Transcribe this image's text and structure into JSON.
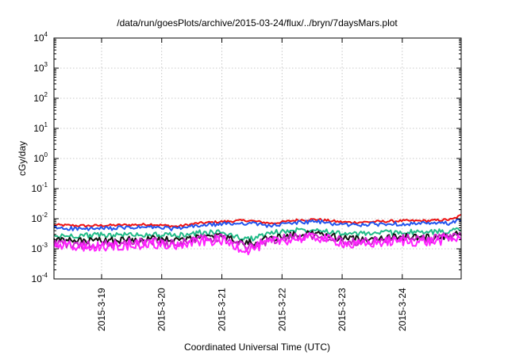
{
  "chart_data": {
    "type": "line",
    "title": "/data/run/goesPlots/archive/2015-03-24/flux/../bryn/7daysMars.plot",
    "xlabel": "Coordinated Universal Time (UTC)",
    "ylabel": "cGy/day",
    "yscale": "log",
    "ylim": [
      "1e-4",
      "1e4"
    ],
    "y_ticks": [
      {
        "base": "10",
        "exp": "4"
      },
      {
        "base": "10",
        "exp": "3"
      },
      {
        "base": "10",
        "exp": "2"
      },
      {
        "base": "10",
        "exp": "1"
      },
      {
        "base": "10",
        "exp": "0"
      },
      {
        "base": "10",
        "exp": "-1"
      },
      {
        "base": "10",
        "exp": "-2"
      },
      {
        "base": "10",
        "exp": "-3"
      },
      {
        "base": "10",
        "exp": "-4"
      }
    ],
    "xlim": [
      "2015-03-18 05:00",
      "2015-03-24 23:30"
    ],
    "x_ticks": [
      "2015-3-19",
      "2015-3-20",
      "2015-3-21",
      "2015-3-22",
      "2015-3-23",
      "2015-3-24"
    ],
    "grid": true,
    "series": [
      {
        "color": "#ee1111",
        "x": [
          "2015-03-18 05:00",
          "2015-03-18 18:00",
          "2015-03-19 10:00",
          "2015-03-19 20:00",
          "2015-03-20 06:00",
          "2015-03-20 14:00",
          "2015-03-21 00:00",
          "2015-03-21 10:00",
          "2015-03-21 20:00",
          "2015-03-22 06:00",
          "2015-03-22 14:00",
          "2015-03-22 22:00",
          "2015-03-23 04:00",
          "2015-03-23 14:00",
          "2015-03-24 00:00",
          "2015-03-24 10:00",
          "2015-03-24 20:00",
          "2015-03-24 23:30"
        ],
        "values": [
          0.0062,
          0.0058,
          0.0062,
          0.0065,
          0.0055,
          0.007,
          0.008,
          0.0088,
          0.007,
          0.009,
          0.0095,
          0.008,
          0.0075,
          0.008,
          0.0085,
          0.0085,
          0.0095,
          0.013
        ]
      },
      {
        "color": "#2255ee",
        "x": [
          "2015-03-18 05:00",
          "2015-03-18 18:00",
          "2015-03-19 10:00",
          "2015-03-19 20:00",
          "2015-03-20 06:00",
          "2015-03-20 14:00",
          "2015-03-21 00:00",
          "2015-03-21 10:00",
          "2015-03-21 20:00",
          "2015-03-22 06:00",
          "2015-03-22 14:00",
          "2015-03-22 22:00",
          "2015-03-23 04:00",
          "2015-03-23 14:00",
          "2015-03-24 00:00",
          "2015-03-24 10:00",
          "2015-03-24 20:00",
          "2015-03-24 23:30"
        ],
        "values": [
          0.005,
          0.0045,
          0.005,
          0.0052,
          0.0046,
          0.0058,
          0.0066,
          0.0072,
          0.0058,
          0.0075,
          0.008,
          0.0066,
          0.0062,
          0.0066,
          0.0068,
          0.0068,
          0.0072,
          0.0092
        ]
      },
      {
        "color": "#22bb88",
        "x": [
          "2015-03-18 05:00",
          "2015-03-18 18:00",
          "2015-03-19 10:00",
          "2015-03-19 20:00",
          "2015-03-20 06:00",
          "2015-03-20 14:00",
          "2015-03-21 00:00",
          "2015-03-21 10:00",
          "2015-03-21 20:00",
          "2015-03-22 06:00",
          "2015-03-22 14:00",
          "2015-03-22 22:00",
          "2015-03-23 04:00",
          "2015-03-23 14:00",
          "2015-03-24 00:00",
          "2015-03-24 10:00",
          "2015-03-24 20:00",
          "2015-03-24 23:30"
        ],
        "values": [
          0.0026,
          0.0028,
          0.0029,
          0.003,
          0.0027,
          0.0034,
          0.0035,
          0.002,
          0.0034,
          0.0042,
          0.0046,
          0.0034,
          0.003,
          0.0034,
          0.0036,
          0.0035,
          0.004,
          0.005
        ]
      },
      {
        "color": "#111111",
        "x": [
          "2015-03-18 05:00",
          "2015-03-18 18:00",
          "2015-03-19 10:00",
          "2015-03-19 20:00",
          "2015-03-20 06:00",
          "2015-03-20 14:00",
          "2015-03-21 00:00",
          "2015-03-21 10:00",
          "2015-03-21 20:00",
          "2015-03-22 06:00",
          "2015-03-22 14:00",
          "2015-03-22 22:00",
          "2015-03-23 04:00",
          "2015-03-23 14:00",
          "2015-03-24 00:00",
          "2015-03-24 10:00",
          "2015-03-24 20:00",
          "2015-03-24 23:30"
        ],
        "values": [
          0.0019,
          0.0018,
          0.002,
          0.0022,
          0.0018,
          0.0024,
          0.0026,
          0.0015,
          0.0023,
          0.003,
          0.0032,
          0.0024,
          0.0021,
          0.0023,
          0.0025,
          0.0024,
          0.0028,
          0.0034
        ]
      },
      {
        "color": "#cc22cc",
        "x": [
          "2015-03-18 05:00",
          "2015-03-18 18:00",
          "2015-03-19 10:00",
          "2015-03-19 20:00",
          "2015-03-20 06:00",
          "2015-03-20 14:00",
          "2015-03-21 00:00",
          "2015-03-21 10:00",
          "2015-03-21 20:00",
          "2015-03-22 06:00",
          "2015-03-22 14:00",
          "2015-03-22 22:00",
          "2015-03-23 04:00",
          "2015-03-23 14:00",
          "2015-03-24 00:00",
          "2015-03-24 10:00",
          "2015-03-24 20:00",
          "2015-03-24 23:30"
        ],
        "values": [
          0.0016,
          0.0013,
          0.0016,
          0.0018,
          0.0014,
          0.0021,
          0.0023,
          0.0011,
          0.002,
          0.0026,
          0.0028,
          0.0021,
          0.0017,
          0.002,
          0.0022,
          0.0021,
          0.0026,
          0.0029
        ]
      },
      {
        "color": "#ff22ff",
        "x": [
          "2015-03-18 05:00",
          "2015-03-18 18:00",
          "2015-03-19 10:00",
          "2015-03-19 20:00",
          "2015-03-20 06:00",
          "2015-03-20 14:00",
          "2015-03-21 00:00",
          "2015-03-21 10:00",
          "2015-03-21 20:00",
          "2015-03-22 06:00",
          "2015-03-22 14:00",
          "2015-03-22 22:00",
          "2015-03-23 04:00",
          "2015-03-23 14:00",
          "2015-03-24 00:00",
          "2015-03-24 10:00",
          "2015-03-24 20:00",
          "2015-03-24 23:30"
        ],
        "values": [
          0.0013,
          0.0011,
          0.0013,
          0.0015,
          0.0012,
          0.0017,
          0.0019,
          0.0009,
          0.0017,
          0.0022,
          0.0024,
          0.0018,
          0.0013,
          0.0016,
          0.0018,
          0.0017,
          0.0021,
          0.0024
        ]
      }
    ]
  }
}
